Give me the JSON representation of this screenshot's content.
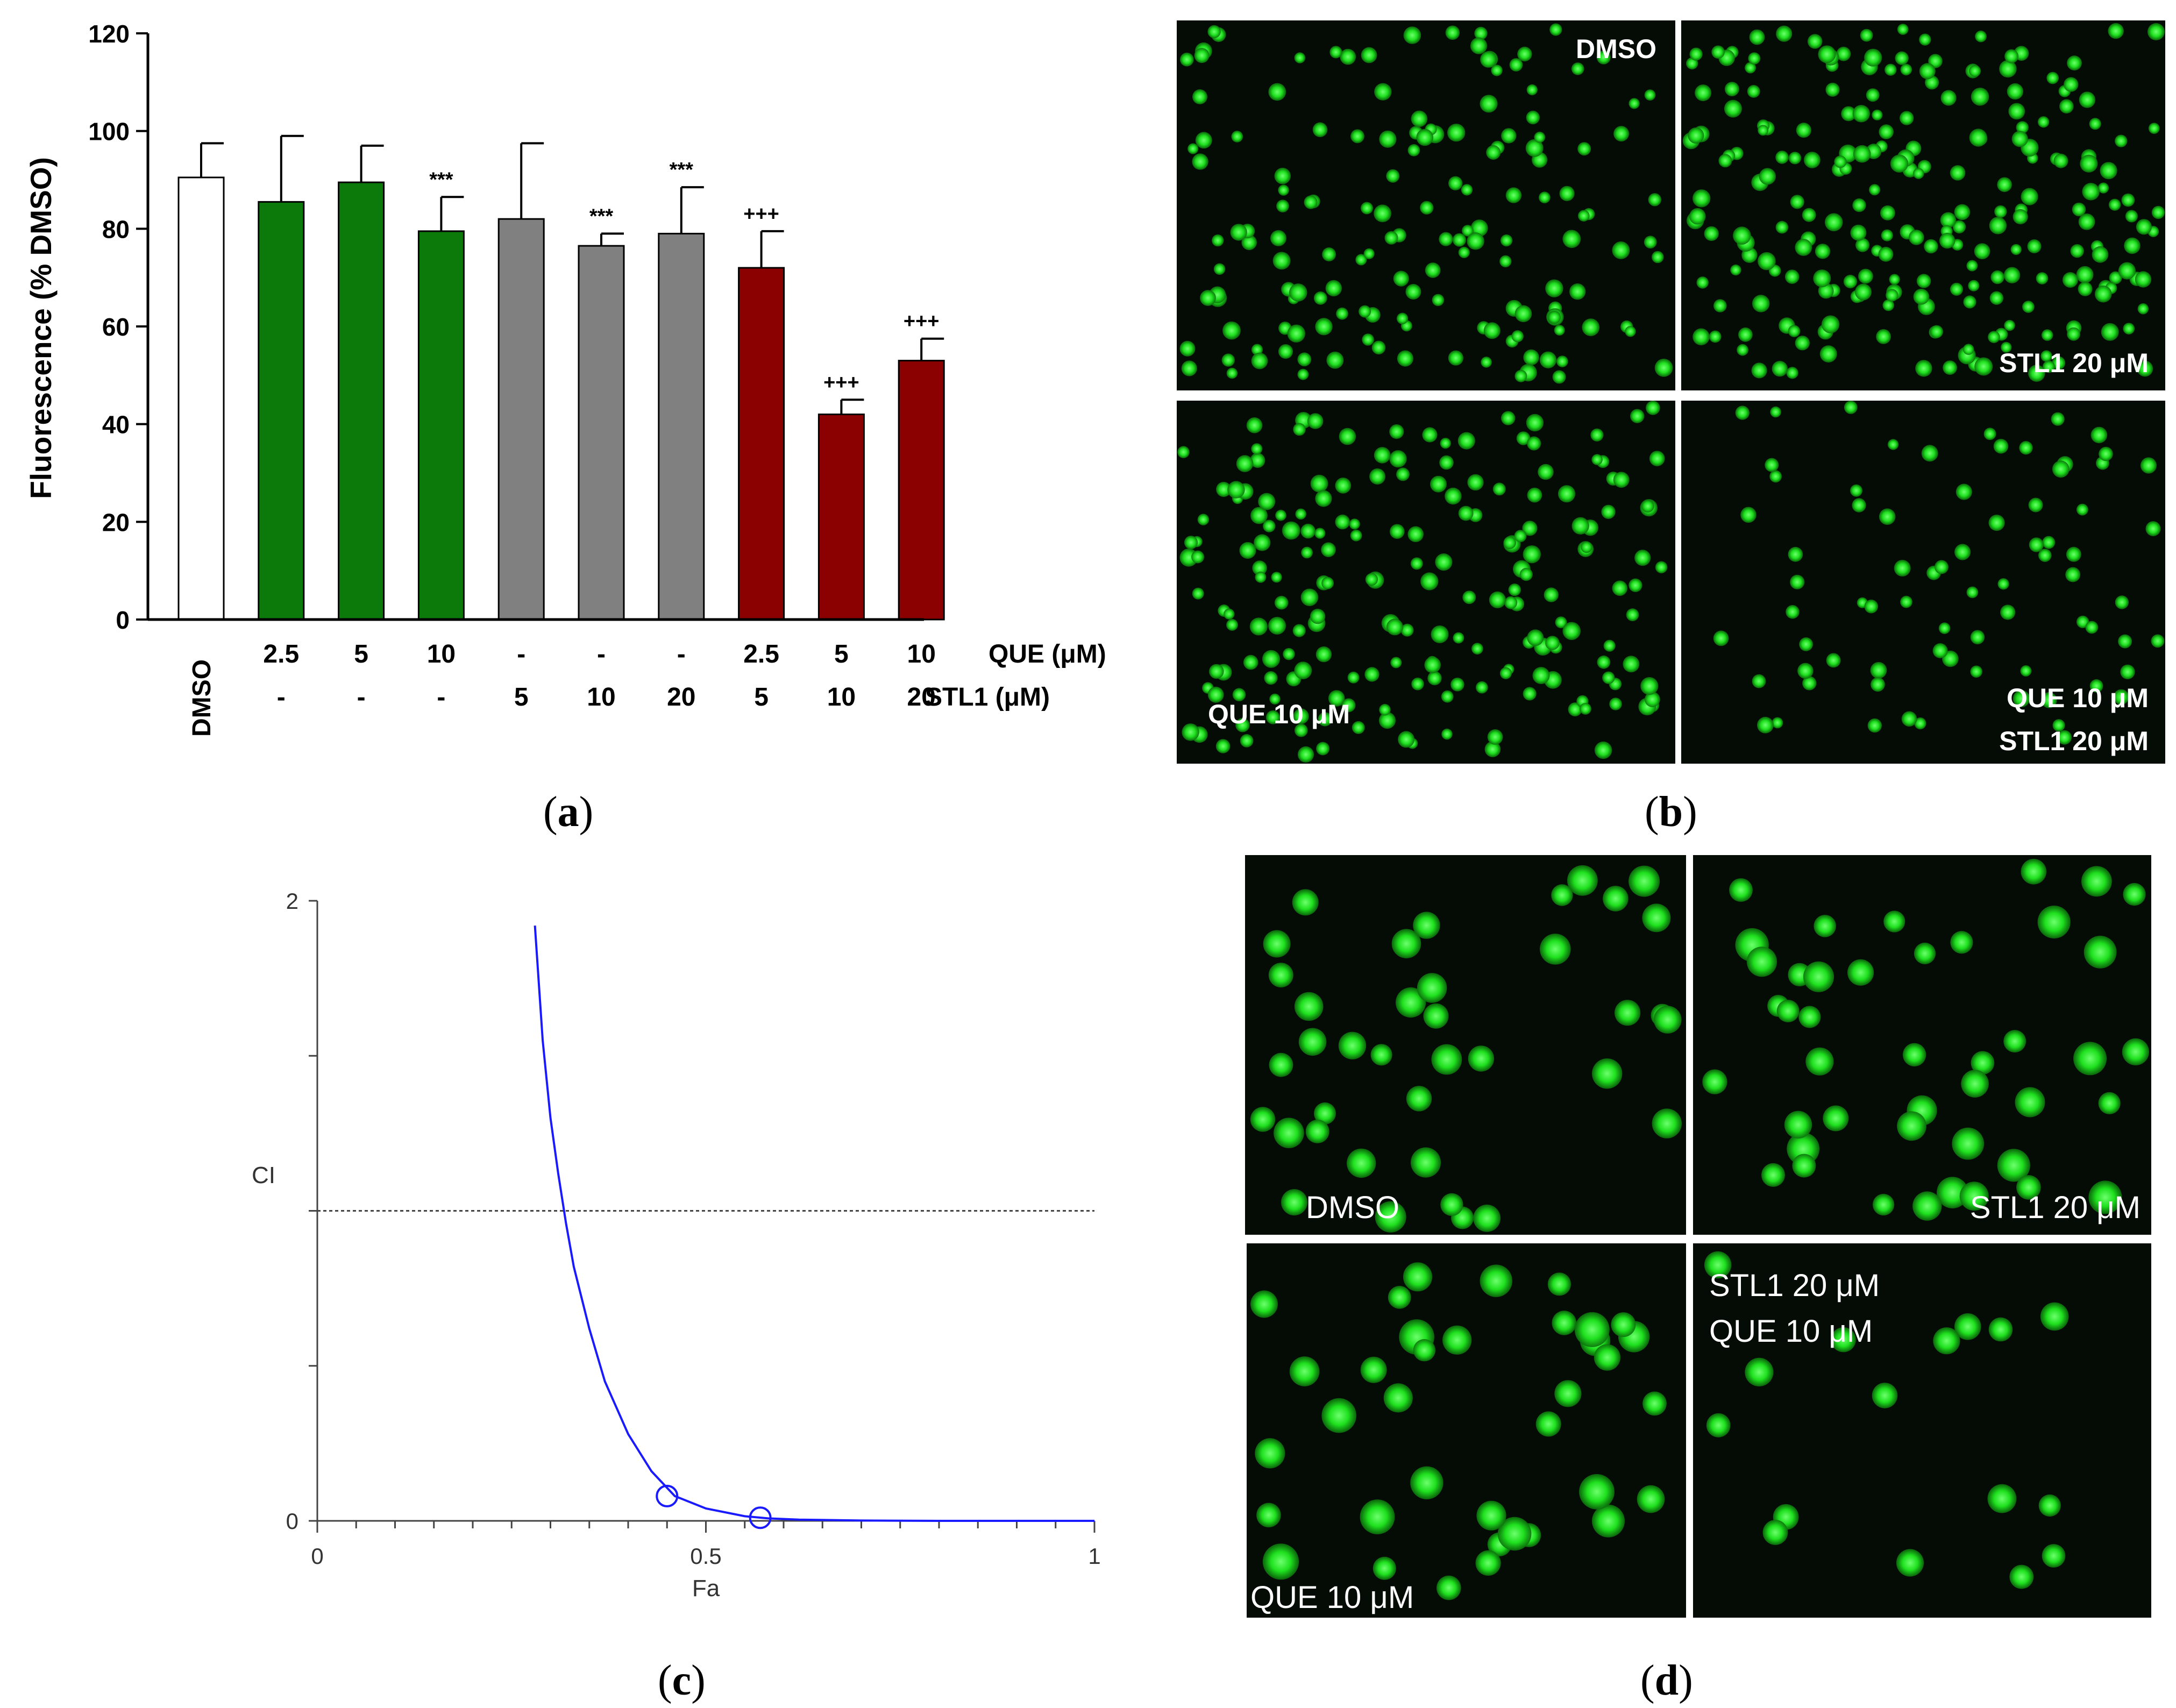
{
  "chart_data": [
    {
      "panel": "a",
      "type": "bar",
      "ylabel": "Fluorescence (% DMSO)",
      "ylim": [
        0,
        120
      ],
      "yticks": [
        0,
        20,
        40,
        60,
        80,
        100,
        120
      ],
      "row_labels": [
        "QUE (μM)",
        "STL1 (μM)"
      ],
      "categories": [
        {
          "que": "DMSO",
          "stl": "",
          "value": 90.5,
          "error": 7,
          "color": "#ffffff",
          "sig": ""
        },
        {
          "que": "2.5",
          "stl": "-",
          "value": 85.5,
          "error": 13.5,
          "color": "#0b7a0b",
          "sig": ""
        },
        {
          "que": "5",
          "stl": "-",
          "value": 89.5,
          "error": 7.5,
          "color": "#0b7a0b",
          "sig": ""
        },
        {
          "que": "10",
          "stl": "-",
          "value": 79.5,
          "error": 7,
          "color": "#0b7a0b",
          "sig": "***"
        },
        {
          "que": "-",
          "stl": "5",
          "value": 82,
          "error": 15.5,
          "color": "#808080",
          "sig": ""
        },
        {
          "que": "-",
          "stl": "10",
          "value": 76.5,
          "error": 2.5,
          "color": "#808080",
          "sig": "***"
        },
        {
          "que": "-",
          "stl": "20",
          "value": 79,
          "error": 9.5,
          "color": "#808080",
          "sig": "***"
        },
        {
          "que": "2.5",
          "stl": "5",
          "value": 72,
          "error": 7.5,
          "color": "#8b0000",
          "sig": "+++"
        },
        {
          "que": "5",
          "stl": "10",
          "value": 42,
          "error": 3,
          "color": "#8b0000",
          "sig": "+++"
        },
        {
          "que": "10",
          "stl": "20",
          "value": 53,
          "error": 4.5,
          "color": "#8b0000",
          "sig": "+++"
        }
      ]
    },
    {
      "panel": "c",
      "type": "line",
      "xlabel": "Fa",
      "ylabel": "CI",
      "xlim": [
        0,
        1
      ],
      "ylim": [
        0,
        2
      ],
      "xtick_labels": [
        "0",
        "0.5",
        "1"
      ],
      "ytick_labels": [
        "0",
        "2"
      ],
      "reference_line_y": 1,
      "curve": {
        "x": [
          0.28,
          0.29,
          0.3,
          0.31,
          0.32,
          0.33,
          0.35,
          0.37,
          0.4,
          0.43,
          0.46,
          0.5,
          0.55,
          0.58,
          0.62,
          0.7,
          0.8,
          0.9,
          1.0
        ],
        "y": [
          1.92,
          1.55,
          1.3,
          1.12,
          0.96,
          0.82,
          0.62,
          0.45,
          0.28,
          0.16,
          0.08,
          0.04,
          0.015,
          0.008,
          0.004,
          0.001,
          0.0,
          0.0,
          0.0
        ]
      },
      "points": [
        {
          "x": 0.45,
          "y": 0.08
        },
        {
          "x": 0.57,
          "y": 0.01
        }
      ],
      "line_color": "#1a1aff"
    }
  ],
  "panel_b": {
    "labels": [
      "DMSO",
      "STL1 20 μM",
      "QUE 10 μM",
      "QUE 10 μM",
      "STL1 20 μM"
    ]
  },
  "panel_d": {
    "labels": [
      "DMSO",
      "STL1 20 μM",
      "QUE 10 μM",
      "STL1 20 μM",
      "QUE 10 μM"
    ]
  },
  "panel_labels": {
    "a": "a",
    "b": "b",
    "c": "c",
    "d": "d"
  }
}
